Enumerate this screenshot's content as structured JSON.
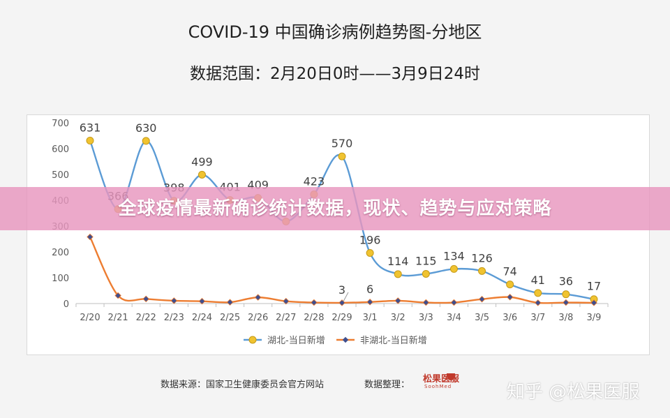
{
  "title": "COVID-19 中国确诊病例趋势图-分地区",
  "subtitle": "数据范围：2月20日0时——3月9日24时",
  "banner": "全球疫情最新确诊统计数据，现状、趋势与应对策略",
  "footer": {
    "source": "数据来源：国家卫生健康委员会官方网站",
    "organizer_label": "数据整理：",
    "organizer_logo_text": "松果医服",
    "organizer_logo_sub": "SoohMed"
  },
  "watermark": "知乎 @松果医服",
  "colors": {
    "hubei": "#5b9bd5",
    "non_hubei": "#ed7d31",
    "hubei_marker": "#f0c330",
    "non_hubei_marker": "#3f4f8f"
  },
  "chart_data": {
    "type": "line",
    "categories": [
      "2/20",
      "2/21",
      "2/22",
      "2/23",
      "2/24",
      "2/25",
      "2/26",
      "2/27",
      "2/28",
      "2/29",
      "3/1",
      "3/2",
      "3/3",
      "3/4",
      "3/5",
      "3/6",
      "3/7",
      "3/8",
      "3/9"
    ],
    "ylim": [
      0,
      700
    ],
    "yticks": [
      0,
      100,
      200,
      300,
      400,
      500,
      600,
      700
    ],
    "grid": false,
    "legend": "bottom",
    "series": [
      {
        "name": "湖北-当日新增",
        "values": [
          631,
          366,
          630,
          398,
          499,
          401,
          409,
          318,
          423,
          570,
          196,
          114,
          115,
          134,
          126,
          74,
          41,
          36,
          17
        ],
        "labels": [
          "631",
          "366",
          "630",
          "398",
          "499",
          "401",
          "409",
          "",
          "423",
          "570",
          "196",
          "114",
          "115",
          "134",
          "126",
          "74",
          "41",
          "36",
          "17"
        ]
      },
      {
        "name": "非湖北-当日新增",
        "values": [
          258,
          31,
          18,
          11,
          9,
          5,
          24,
          9,
          4,
          3,
          6,
          11,
          4,
          4,
          17,
          25,
          3,
          4,
          3
        ],
        "labels": [
          "",
          "",
          "",
          "",
          "",
          "",
          "",
          "",
          "",
          "3",
          "6",
          "",
          "",
          "",
          "",
          "",
          "",
          "",
          ""
        ]
      }
    ]
  }
}
